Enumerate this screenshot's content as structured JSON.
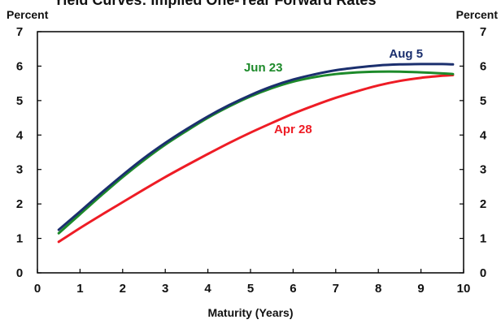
{
  "chart_data": {
    "type": "line",
    "title": "Yield Curves: Implied One-Year Forward Rates",
    "xlabel": "Maturity (Years)",
    "ylabel_left": "Percent",
    "ylabel_right": "Percent",
    "xlim": [
      0,
      10
    ],
    "ylim": [
      0,
      7
    ],
    "xticks": [
      0,
      1,
      2,
      3,
      4,
      5,
      6,
      7,
      8,
      9,
      10
    ],
    "yticks": [
      0,
      1,
      2,
      3,
      4,
      5,
      6,
      7
    ],
    "grid": false,
    "series": [
      {
        "name": "Apr 28",
        "color": "#ee1c25",
        "x": [
          0.5,
          1,
          1.5,
          2,
          2.5,
          3,
          3.5,
          4,
          4.5,
          5,
          5.5,
          6,
          6.5,
          7,
          7.5,
          8,
          8.5,
          9,
          9.5,
          9.75
        ],
        "y": [
          0.9,
          1.3,
          1.68,
          2.05,
          2.42,
          2.78,
          3.12,
          3.45,
          3.77,
          4.07,
          4.35,
          4.62,
          4.86,
          5.08,
          5.27,
          5.44,
          5.57,
          5.66,
          5.72,
          5.74
        ]
      },
      {
        "name": "Jun 23",
        "color": "#1d8a2a",
        "x": [
          0.5,
          1,
          1.5,
          2,
          2.5,
          3,
          3.5,
          4,
          4.5,
          5,
          5.5,
          6,
          6.5,
          7,
          7.5,
          8,
          8.5,
          9,
          9.5,
          9.75
        ],
        "y": [
          1.15,
          1.7,
          2.25,
          2.78,
          3.27,
          3.72,
          4.12,
          4.5,
          4.83,
          5.12,
          5.36,
          5.55,
          5.68,
          5.77,
          5.82,
          5.84,
          5.84,
          5.82,
          5.79,
          5.77
        ]
      },
      {
        "name": "Aug 5",
        "color": "#1b2f6e",
        "x": [
          0.5,
          1,
          1.5,
          2,
          2.5,
          3,
          3.5,
          4,
          4.5,
          5,
          5.5,
          6,
          6.5,
          7,
          7.5,
          8,
          8.5,
          9,
          9.5,
          9.75
        ],
        "y": [
          1.25,
          1.78,
          2.32,
          2.84,
          3.33,
          3.77,
          4.17,
          4.54,
          4.87,
          5.16,
          5.41,
          5.61,
          5.76,
          5.88,
          5.96,
          6.02,
          6.05,
          6.06,
          6.06,
          6.05
        ]
      }
    ]
  }
}
